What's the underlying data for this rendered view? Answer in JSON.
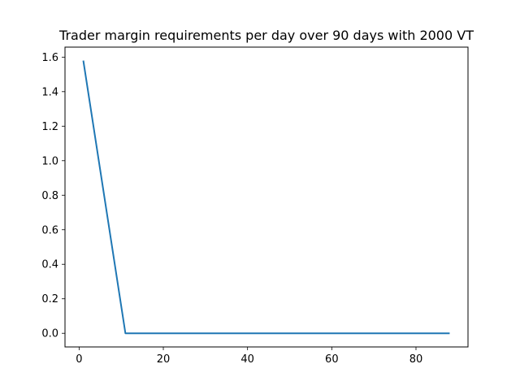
{
  "chart_data": {
    "type": "line",
    "title": "Trader margin requirements per day over 90 days with 2000 VT",
    "xlabel": "",
    "ylabel": "",
    "xlim": [
      -3.35,
      92.35
    ],
    "ylim": [
      -0.079,
      1.658
    ],
    "xticks": [
      0,
      20,
      40,
      60,
      80
    ],
    "yticks": [
      0.0,
      0.2,
      0.4,
      0.6,
      0.8,
      1.0,
      1.2,
      1.4,
      1.6
    ],
    "ytick_labels": [
      "0.0",
      "0.2",
      "0.4",
      "0.6",
      "0.8",
      "1.0",
      "1.2",
      "1.4",
      "1.6"
    ],
    "grid": false,
    "series": [
      {
        "color": "#1f77b4",
        "x": [
          1,
          11,
          88
        ],
        "y": [
          1.58,
          0.0,
          0.0
        ]
      }
    ]
  }
}
